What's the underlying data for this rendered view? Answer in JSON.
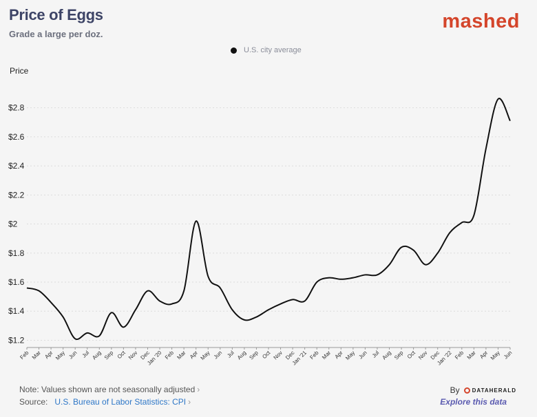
{
  "header": {
    "title": "Price of Eggs",
    "subtitle": "Grade a large per doz.",
    "brand": "mashed"
  },
  "legend": {
    "label": "U.S. city average",
    "color": "#111111"
  },
  "footer": {
    "note": "Note: Values shown are not seasonally adjusted",
    "source_label": "Source:",
    "source_link": "U.S. Bureau of Labor Statistics: CPI",
    "by": "By",
    "publisher": "DATAHERALD",
    "explore": "Explore this data"
  },
  "colors": {
    "title": "#3d4466",
    "brand": "#d4452b",
    "line": "#111111",
    "link": "#2e77c7"
  },
  "chart_data": {
    "type": "line",
    "title": "Price of Eggs",
    "subtitle": "Grade a large per doz.",
    "ylabel": "Price",
    "ylim": [
      1.15,
      2.95
    ],
    "yticks": [
      1.2,
      1.4,
      1.6,
      1.8,
      2.0,
      2.2,
      2.4,
      2.6,
      2.8
    ],
    "ytick_labels": [
      "$1.2",
      "$1.4",
      "$1.6",
      "$1.8",
      "$2",
      "$2.2",
      "$2.4",
      "$2.6",
      "$2.8"
    ],
    "grid": true,
    "legend_position": "top-center",
    "categories": [
      "Feb",
      "Mar",
      "Apr",
      "May",
      "Jun",
      "Jul",
      "Aug",
      "Sep",
      "Oct",
      "Nov",
      "Dec",
      "Jan '20",
      "Feb",
      "Mar",
      "Apr",
      "May",
      "Jun",
      "Jul",
      "Aug",
      "Sep",
      "Oct",
      "Nov",
      "Dec",
      "Jan '21",
      "Feb",
      "Mar",
      "Apr",
      "May",
      "Jun",
      "Jul",
      "Aug",
      "Sep",
      "Oct",
      "Nov",
      "Dec",
      "Jan '22",
      "Feb",
      "Mar",
      "Apr",
      "May",
      "Jun"
    ],
    "series": [
      {
        "name": "U.S. city average",
        "values": [
          1.56,
          1.54,
          1.46,
          1.36,
          1.21,
          1.25,
          1.23,
          1.39,
          1.29,
          1.41,
          1.54,
          1.47,
          1.45,
          1.54,
          2.02,
          1.64,
          1.56,
          1.41,
          1.34,
          1.36,
          1.41,
          1.45,
          1.48,
          1.47,
          1.6,
          1.63,
          1.62,
          1.63,
          1.65,
          1.65,
          1.72,
          1.84,
          1.82,
          1.72,
          1.8,
          1.94,
          2.01,
          2.06,
          2.52,
          2.86,
          2.71
        ]
      }
    ]
  }
}
